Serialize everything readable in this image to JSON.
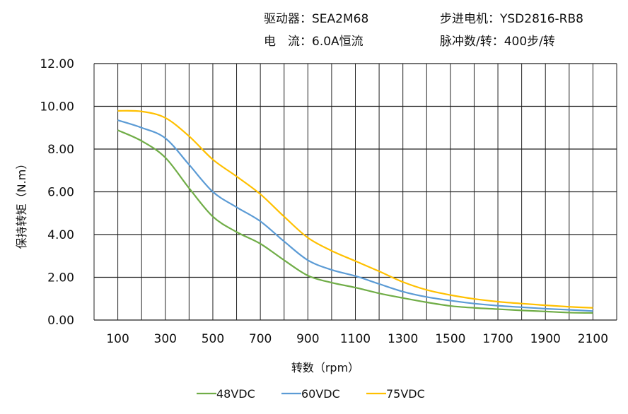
{
  "header": {
    "driver": "驱动器：SEA2M68",
    "motor": "步进电机：YSD2816-RB8",
    "current": "电　流：6.0A恒流",
    "pulses": "脉冲数/转：400步/转"
  },
  "chart_data": {
    "type": "line",
    "title": "",
    "xlabel": "转数（rpm）",
    "ylabel": "保持转矩（N.m）",
    "xlim": [
      0,
      2200
    ],
    "ylim": [
      0,
      12
    ],
    "x_ticks": [
      100,
      300,
      500,
      700,
      900,
      1100,
      1300,
      1500,
      1700,
      1900,
      2100
    ],
    "x_tick_labels": [
      "100",
      "300",
      "500",
      "700",
      "900",
      "1100",
      "1300",
      "1500",
      "1700",
      "1900",
      "2100"
    ],
    "y_ticks": [
      0,
      2,
      4,
      6,
      8,
      10,
      12
    ],
    "y_tick_labels": [
      "0.00",
      "2.00",
      "4.00",
      "6.00",
      "8.00",
      "10.00",
      "12.00"
    ],
    "grid": true,
    "legend_position": "bottom",
    "x": [
      100,
      200,
      300,
      400,
      500,
      600,
      700,
      800,
      900,
      1000,
      1100,
      1200,
      1300,
      1400,
      1500,
      1600,
      1700,
      1800,
      1900,
      2000,
      2100
    ],
    "series": [
      {
        "name": "48VDC",
        "color": "#70ad47",
        "values": [
          8.88,
          8.38,
          7.6,
          6.17,
          4.84,
          4.12,
          3.57,
          2.8,
          2.08,
          1.75,
          1.52,
          1.25,
          1.03,
          0.83,
          0.66,
          0.57,
          0.51,
          0.45,
          0.4,
          0.35,
          0.33
        ]
      },
      {
        "name": "60VDC",
        "color": "#5b9bd5",
        "values": [
          9.35,
          9.0,
          8.51,
          7.27,
          6.0,
          5.28,
          4.62,
          3.68,
          2.8,
          2.35,
          2.06,
          1.69,
          1.33,
          1.08,
          0.91,
          0.77,
          0.67,
          0.6,
          0.53,
          0.48,
          0.42
        ]
      },
      {
        "name": "75VDC",
        "color": "#ffc000",
        "values": [
          9.79,
          9.76,
          9.46,
          8.6,
          7.51,
          6.72,
          5.89,
          4.84,
          3.85,
          3.24,
          2.76,
          2.28,
          1.78,
          1.41,
          1.17,
          0.99,
          0.86,
          0.77,
          0.69,
          0.62,
          0.57
        ]
      }
    ]
  }
}
